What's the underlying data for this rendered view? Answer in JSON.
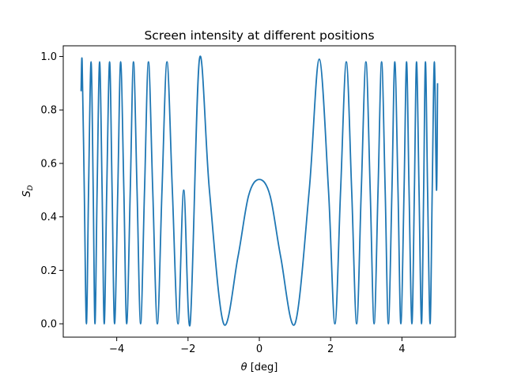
{
  "chart_data": {
    "type": "line",
    "title": "Screen intensity at different positions",
    "xlabel_symbol": "θ",
    "xlabel_unit": " [deg]",
    "ylabel_symbol": "S",
    "ylabel_subscript": "D",
    "xlim": [
      -5.5,
      5.5
    ],
    "ylim": [
      -0.05,
      1.04
    ],
    "xticks": [
      -4,
      -2,
      0,
      2,
      4
    ],
    "xtick_labels": [
      "−4",
      "−2",
      "0",
      "2",
      "4"
    ],
    "yticks": [
      0.0,
      0.2,
      0.4,
      0.6,
      0.8,
      1.0
    ],
    "ytick_labels": [
      "0.0",
      "0.2",
      "0.4",
      "0.6",
      "0.8",
      "1.0"
    ],
    "grid": false,
    "series_color": "#1f77b4",
    "series": [
      {
        "x_range": [
          -5,
          5
        ],
        "x": [
          -5.0,
          -4.97,
          -4.91,
          -4.85,
          -4.79,
          -4.72,
          -4.66,
          -4.61,
          -4.55,
          -4.48,
          -4.41,
          -4.35,
          -4.28,
          -4.2,
          -4.13,
          -4.06,
          -3.97,
          -3.89,
          -3.8,
          -3.72,
          -3.62,
          -3.53,
          -3.43,
          -3.33,
          -3.22,
          -3.11,
          -2.99,
          -2.86,
          -2.73,
          -2.59,
          -2.44,
          -2.28,
          -2.12,
          -1.94,
          -1.68,
          -1.4,
          -1.0,
          -0.6,
          -0.3,
          0.0,
          0.3,
          0.6,
          1.0,
          1.4,
          1.68,
          1.94,
          2.12,
          2.28,
          2.44,
          2.59,
          2.73,
          2.86,
          2.99,
          3.11,
          3.22,
          3.33,
          3.43,
          3.53,
          3.62,
          3.72,
          3.8,
          3.89,
          3.97,
          4.06,
          4.13,
          4.2,
          4.28,
          4.35,
          4.41,
          4.48,
          4.55,
          4.61,
          4.66,
          4.72,
          4.79,
          4.85,
          4.91,
          4.97,
          5.0
        ],
        "y": [
          0.87,
          0.98,
          0.5,
          0.0,
          0.5,
          0.98,
          0.5,
          0.0,
          0.5,
          0.98,
          0.5,
          0.0,
          0.5,
          0.98,
          0.5,
          0.0,
          0.5,
          0.98,
          0.5,
          0.0,
          0.5,
          0.98,
          0.5,
          0.0,
          0.5,
          0.98,
          0.5,
          0.0,
          0.5,
          0.98,
          0.5,
          0.0,
          0.5,
          0.0,
          0.99,
          0.5,
          0.0,
          0.25,
          0.48,
          0.54,
          0.48,
          0.25,
          0.0,
          0.5,
          0.99,
          0.5,
          0.0,
          0.5,
          0.98,
          0.5,
          0.0,
          0.5,
          0.98,
          0.5,
          0.0,
          0.5,
          0.98,
          0.5,
          0.0,
          0.5,
          0.98,
          0.5,
          0.0,
          0.5,
          0.98,
          0.5,
          0.0,
          0.5,
          0.98,
          0.5,
          0.0,
          0.5,
          0.98,
          0.5,
          0.0,
          0.5,
          0.98,
          0.5,
          0.9
        ]
      }
    ]
  }
}
